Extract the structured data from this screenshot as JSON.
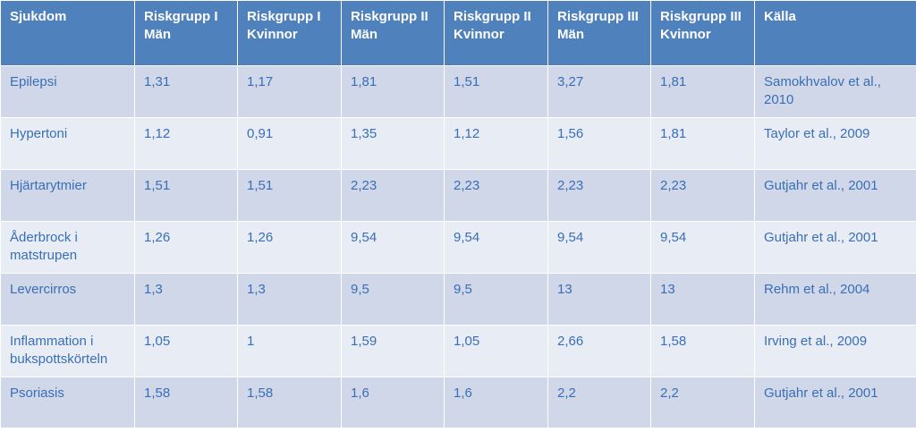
{
  "table": {
    "headers": [
      "Sjukdom",
      "Riskgrupp I Män",
      "Riskgrupp I Kvinnor",
      "Riskgrupp II Män",
      "Riskgrupp II Kvinnor",
      "Riskgrupp III Män",
      "Riskgrupp III Kvinnor",
      "Källa"
    ],
    "rows": [
      [
        "Epilepsi",
        "1,31",
        "1,17",
        "1,81",
        "1,51",
        "3,27",
        "1,81",
        "Samokhvalov et al., 2010"
      ],
      [
        "Hypertoni",
        "1,12",
        "0,91",
        "1,35",
        "1,12",
        "1,56",
        "1,81",
        "Taylor et al., 2009"
      ],
      [
        "Hjärtarytmier",
        "1,51",
        "1,51",
        "2,23",
        "2,23",
        "2,23",
        "2,23",
        "Gutjahr et al., 2001"
      ],
      [
        "Åderbrock i matstrupen",
        "1,26",
        "1,26",
        "9,54",
        "9,54",
        "9,54",
        "9,54",
        "Gutjahr et al., 2001"
      ],
      [
        "Levercirros",
        "1,3",
        "1,3",
        "9,5",
        "9,5",
        "13",
        "13",
        "Rehm et al., 2004"
      ],
      [
        "Inflammation i bukspottskörteln",
        "1,05",
        "1",
        "1,59",
        "1,05",
        "2,66",
        "1,58",
        "Irving et al., 2009"
      ],
      [
        "Psoriasis",
        "1,58",
        "1,58",
        "1,6",
        "1,6",
        "2,2",
        "2,2",
        "Gutjahr et al., 2001"
      ]
    ]
  },
  "colors": {
    "header_bg": "#4f81bd",
    "header_text": "#ffffff",
    "row_dark": "#cfd7e8",
    "row_light": "#e8ecf4",
    "cell_text": "#3a6fb5"
  }
}
